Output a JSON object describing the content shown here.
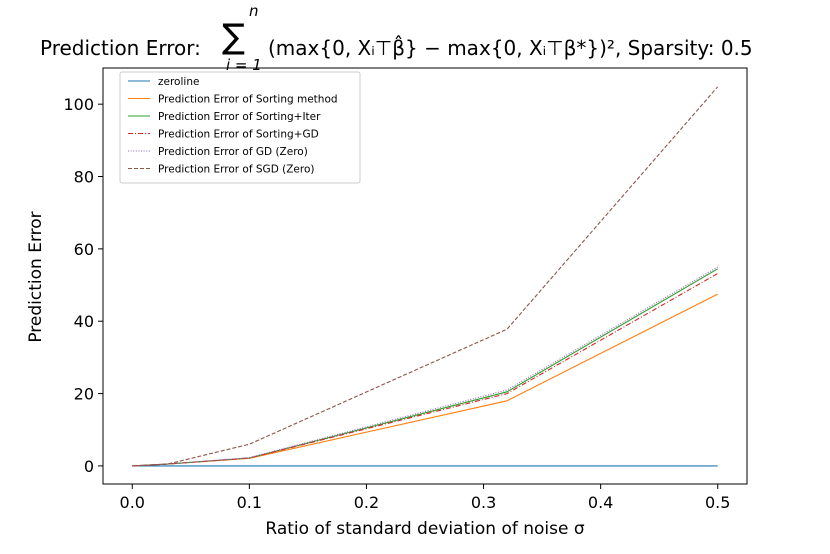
{
  "title": {
    "prefix": "Prediction Error:",
    "sum_symbol": "∑",
    "sum_upper": "n",
    "sum_lower": "i = 1",
    "expression": "(max{0, Xᵢ⊤β̂} − max{0, Xᵢ⊤β*})², Sparsity: 0.5"
  },
  "chart_data": {
    "type": "line",
    "title": "Prediction Error: ∑_{i=1}^{n} (max{0, X_i^⊤ β̂} − max{0, X_i^⊤ β*})², Sparsity: 0.5",
    "xlabel": "Ratio of standard deviation of noise σ",
    "ylabel": "Prediction Error",
    "xlim": [
      -0.025,
      0.525
    ],
    "ylim": [
      -5,
      110
    ],
    "xticks": [
      0.0,
      0.1,
      0.2,
      0.3,
      0.4,
      0.5
    ],
    "xtick_labels": [
      "0.0",
      "0.1",
      "0.2",
      "0.3",
      "0.4",
      "0.5"
    ],
    "yticks": [
      0,
      20,
      40,
      60,
      80,
      100
    ],
    "ytick_labels": [
      "0",
      "20",
      "40",
      "60",
      "80",
      "100"
    ],
    "grid": false,
    "legend_position": "top-left",
    "x": [
      0.0,
      0.03,
      0.1,
      0.32,
      0.5
    ],
    "series": [
      {
        "name": "zeroline",
        "values": [
          0,
          0,
          0,
          0,
          0
        ],
        "color": "#1f77b4",
        "dash": "solid"
      },
      {
        "name": "Prediction Error of Sorting method",
        "values": [
          0,
          0.5,
          2.1,
          18.0,
          47.5
        ],
        "color": "#ff7f0e",
        "dash": "solid"
      },
      {
        "name": "Prediction Error of Sorting+Iter",
        "values": [
          0,
          0.5,
          2.2,
          20.5,
          54.5
        ],
        "color": "#2ca02c",
        "dash": "solid"
      },
      {
        "name": "Prediction Error of Sorting+GD",
        "values": [
          0,
          0.5,
          2.2,
          20.0,
          53.2
        ],
        "color": "#d62728",
        "dash": "dashdot"
      },
      {
        "name": "Prediction Error of GD (Zero)",
        "values": [
          0,
          0.5,
          2.3,
          21.0,
          55.0
        ],
        "color": "#9467bd",
        "dash": "dotted"
      },
      {
        "name": "Prediction Error of SGD (Zero)",
        "values": [
          0,
          0.5,
          6.0,
          37.8,
          104.8
        ],
        "color": "#8c564b",
        "dash": "dashed"
      }
    ]
  }
}
